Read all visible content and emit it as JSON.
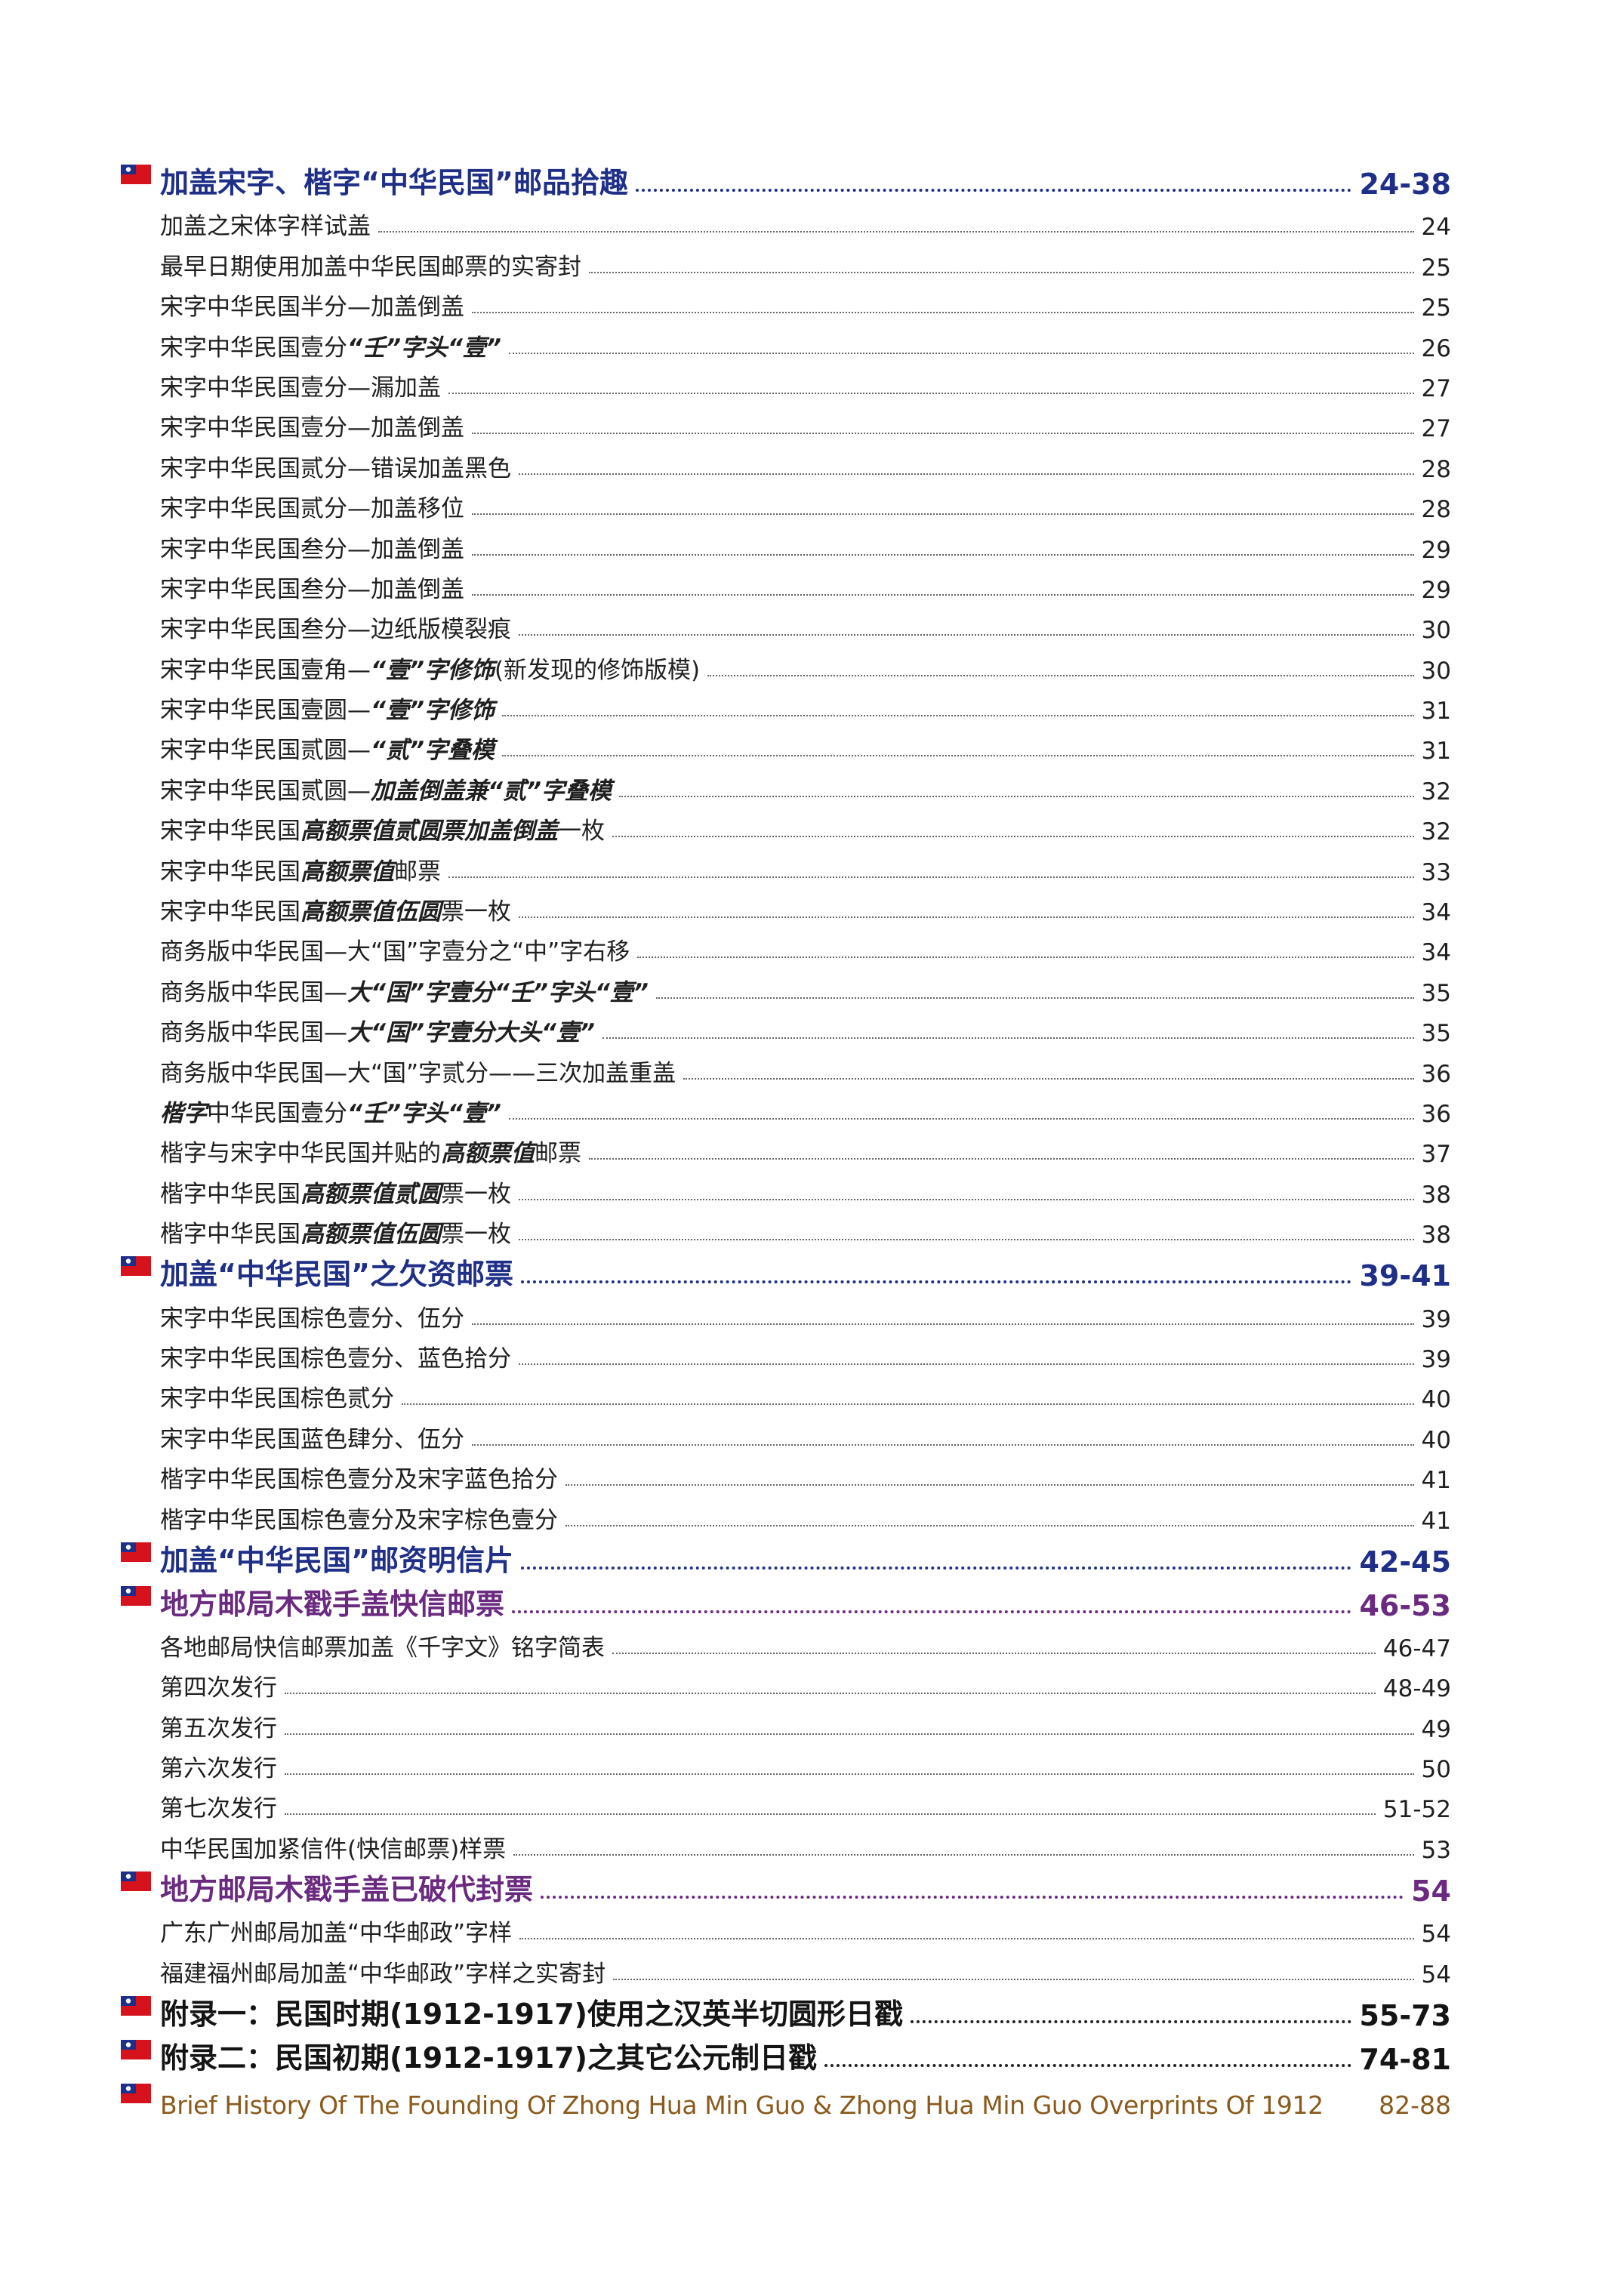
{
  "toc": [
    {
      "kind": "section",
      "color": "blue",
      "title": "加盖宋字、楷字“中华民国”邮品拾趣",
      "page": "24-38"
    },
    {
      "kind": "item",
      "title": "加盖之宋体字样试盖",
      "page": "24"
    },
    {
      "kind": "item",
      "title": "最早日期使用加盖中华民国邮票的实寄封",
      "page": "25"
    },
    {
      "kind": "item",
      "title": "宋字中华民国半分—加盖倒盖",
      "page": "25"
    },
    {
      "kind": "item",
      "title": "宋字中华民国壹分",
      "title_b": "“壬”字头“壹”",
      "page": "26"
    },
    {
      "kind": "item",
      "title": "宋字中华民国壹分—漏加盖",
      "page": "27"
    },
    {
      "kind": "item",
      "title": "宋字中华民国壹分—加盖倒盖",
      "page": "27"
    },
    {
      "kind": "item",
      "title": "宋字中华民国贰分—错误加盖黑色",
      "page": "28"
    },
    {
      "kind": "item",
      "title": "宋字中华民国贰分—加盖移位",
      "page": "28"
    },
    {
      "kind": "item",
      "title": "宋字中华民国叁分—加盖倒盖",
      "page": "29"
    },
    {
      "kind": "item",
      "title": "宋字中华民国叁分—加盖倒盖",
      "page": "29"
    },
    {
      "kind": "item",
      "title": "宋字中华民国叁分—边纸版模裂痕",
      "page": "30"
    },
    {
      "kind": "item",
      "title": "宋字中华民国壹角—",
      "title_b": "“壹”字修饰",
      "title_c": "(新发现的修饰版模)",
      "page": "30"
    },
    {
      "kind": "item",
      "title": "宋字中华民国壹圆—",
      "title_b": "“壹”字修饰",
      "page": "31"
    },
    {
      "kind": "item",
      "title": "宋字中华民国贰圆—",
      "title_b": "“贰”字叠模",
      "page": "31"
    },
    {
      "kind": "item",
      "title": "宋字中华民国贰圆—",
      "title_b": "加盖倒盖兼“贰”字叠模",
      "page": "32"
    },
    {
      "kind": "item",
      "title": "宋字中华民国",
      "title_b": "高额票值贰圆票加盖倒盖",
      "title_c": "一枚",
      "page": "32"
    },
    {
      "kind": "item",
      "title": "宋字中华民国",
      "title_b": "高额票值",
      "title_c": "邮票",
      "page": "33"
    },
    {
      "kind": "item",
      "title": "宋字中华民国",
      "title_b": "高额票值伍圆",
      "title_c": "票一枚",
      "page": "34"
    },
    {
      "kind": "item",
      "title": "商务版中华民国—大“国”字壹分之“中”字右移",
      "page": "34"
    },
    {
      "kind": "item",
      "title": "商务版中华民国—",
      "title_b": "大“国”字壹分“壬”字头“壹”",
      "page": "35"
    },
    {
      "kind": "item",
      "title": "商务版中华民国—",
      "title_b": "大“国”字壹分大头“壹”",
      "page": "35"
    },
    {
      "kind": "item",
      "title": "商务版中华民国—大“国”字贰分——三次加盖重盖",
      "page": "36"
    },
    {
      "kind": "item",
      "title": "",
      "title_b": "楷字",
      "title_c": "中华民国壹分",
      "title_d": "“壬”字头“壹”",
      "page": "36"
    },
    {
      "kind": "item",
      "title": "楷字与宋字中华民国并贴的",
      "title_b": "高额票值",
      "title_c": "邮票",
      "page": "37"
    },
    {
      "kind": "item",
      "title": "楷字中华民国",
      "title_b": "高额票值贰圆",
      "title_c": "票一枚",
      "page": "38"
    },
    {
      "kind": "item",
      "title": "楷字中华民国",
      "title_b": "高额票值伍圆",
      "title_c": "票一枚",
      "page": "38"
    },
    {
      "kind": "section",
      "color": "blue",
      "title": "加盖“中华民国”之欠资邮票",
      "page": "39-41"
    },
    {
      "kind": "item",
      "title": "宋字中华民国棕色壹分、伍分",
      "page": "39"
    },
    {
      "kind": "item",
      "title": "宋字中华民国棕色壹分、蓝色拾分",
      "page": "39"
    },
    {
      "kind": "item",
      "title": "宋字中华民国棕色贰分",
      "page": "40"
    },
    {
      "kind": "item",
      "title": "宋字中华民国蓝色肆分、伍分",
      "page": "40"
    },
    {
      "kind": "item",
      "title": "楷字中华民国棕色壹分及宋字蓝色拾分",
      "page": "41"
    },
    {
      "kind": "item",
      "title": "楷字中华民国棕色壹分及宋字棕色壹分",
      "page": "41"
    },
    {
      "kind": "section",
      "color": "blue",
      "title": "加盖“中华民国”邮资明信片",
      "page": "42-45"
    },
    {
      "kind": "section",
      "color": "purple",
      "title": "地方邮局木戳手盖快信邮票",
      "page": "46-53"
    },
    {
      "kind": "item",
      "title": "各地邮局快信邮票加盖《千字文》铭字简表",
      "page": "46-47"
    },
    {
      "kind": "item",
      "title": "第四次发行",
      "page": "48-49"
    },
    {
      "kind": "item",
      "title": "第五次发行",
      "page": "49"
    },
    {
      "kind": "item",
      "title": "第六次发行",
      "page": "50"
    },
    {
      "kind": "item",
      "title": "第七次发行",
      "page": "51-52"
    },
    {
      "kind": "item",
      "title": "中华民国加紧信件(快信邮票)样票",
      "page": "53"
    },
    {
      "kind": "section",
      "color": "purple",
      "title": "地方邮局木戳手盖已破代封票",
      "page": "54"
    },
    {
      "kind": "item",
      "title": "广东广州邮局加盖“中华邮政”字样",
      "page": "54"
    },
    {
      "kind": "item",
      "title": "福建福州邮局加盖“中华邮政”字样之实寄封",
      "page": "54"
    },
    {
      "kind": "section",
      "color": "black",
      "title": "附录一：民国时期(1912-1917)使用之汉英半切圆形日戳",
      "page": "55-73"
    },
    {
      "kind": "section",
      "color": "black",
      "title": "附录二：民国初期(1912-1917)之其它公元制日戳",
      "page": "74-81"
    },
    {
      "kind": "section",
      "color": "brown",
      "title": "Brief History Of The Founding Of Zhong Hua Min Guo & Zhong Hua Min Guo Overprints Of 1912",
      "page": "82-88"
    }
  ],
  "colors": {
    "section_blue": "#1f2f88",
    "section_purple": "#6a2a80",
    "section_brown": "#8a5a1c",
    "flag_red": "#d6121d",
    "flag_blue": "#1e2f8a"
  },
  "icons": {
    "section_marker": "flag-icon"
  }
}
